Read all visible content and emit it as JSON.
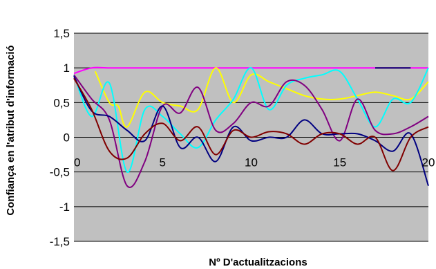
{
  "chart_data": {
    "type": "line",
    "title": "",
    "xlabel": "Nº D'actualitzacions",
    "ylabel": "Confiança en l'atribut d'informació",
    "xlim": [
      0,
      20
    ],
    "ylim": [
      -1.5,
      1.5
    ],
    "x_ticks": [
      0,
      5,
      10,
      15,
      20
    ],
    "x_tick_labels": [
      "0",
      "5",
      "10",
      "15",
      "20"
    ],
    "y_ticks": [
      1.5,
      1,
      0.5,
      0,
      -0.5,
      -1,
      -1.5
    ],
    "y_tick_labels": [
      "1,5",
      "1",
      "0,5",
      "0",
      "-0,5",
      "-1",
      "-1,5"
    ],
    "grid": true,
    "plot_background": "#c0c0c0",
    "legend": "none",
    "series": [
      {
        "color": "#ff00ff",
        "points": [
          [
            0,
            0.92
          ],
          [
            1,
            1
          ],
          [
            2,
            1
          ],
          [
            4,
            1
          ],
          [
            6,
            1
          ],
          [
            8,
            1
          ],
          [
            10,
            1
          ],
          [
            12,
            1
          ],
          [
            14,
            1
          ],
          [
            16,
            1
          ],
          [
            18,
            1
          ],
          [
            20,
            1
          ]
        ]
      },
      {
        "color": "#000066",
        "points": [
          [
            17,
            1
          ],
          [
            19,
            1
          ]
        ]
      },
      {
        "color": "#ffff00",
        "points": [
          [
            1.2,
            0.95
          ],
          [
            2,
            0.5
          ],
          [
            2.5,
            0.45
          ],
          [
            3,
            0.15
          ],
          [
            4,
            0.65
          ],
          [
            5,
            0.5
          ],
          [
            6,
            0.45
          ],
          [
            7,
            0.4
          ],
          [
            8,
            1.0
          ],
          [
            9,
            0.5
          ],
          [
            10,
            0.9
          ],
          [
            11,
            0.8
          ],
          [
            12,
            0.7
          ],
          [
            13,
            0.6
          ],
          [
            14,
            0.55
          ],
          [
            15,
            0.55
          ],
          [
            16,
            0.6
          ],
          [
            17,
            0.65
          ],
          [
            18,
            0.6
          ],
          [
            19,
            0.55
          ],
          [
            20,
            0.8
          ]
        ]
      },
      {
        "color": "#00ffff",
        "points": [
          [
            0,
            0.9
          ],
          [
            1,
            0.3
          ],
          [
            2,
            0.78
          ],
          [
            3,
            -0.5
          ],
          [
            4,
            0.4
          ],
          [
            5,
            0.3
          ],
          [
            6,
            0.05
          ],
          [
            7,
            -0.15
          ],
          [
            8,
            0.25
          ],
          [
            9,
            0.55
          ],
          [
            10,
            1.0
          ],
          [
            11,
            0.4
          ],
          [
            12,
            0.75
          ],
          [
            13,
            0.85
          ],
          [
            14,
            0.9
          ],
          [
            15,
            0.95
          ],
          [
            16,
            0.55
          ],
          [
            17,
            0.15
          ],
          [
            18,
            0.55
          ],
          [
            19,
            0.5
          ],
          [
            20,
            1.0
          ]
        ]
      },
      {
        "color": "#800080",
        "points": [
          [
            0,
            0.9
          ],
          [
            1,
            0.55
          ],
          [
            2,
            0.25
          ],
          [
            3,
            -0.7
          ],
          [
            4,
            -0.35
          ],
          [
            5,
            0.45
          ],
          [
            6,
            0.35
          ],
          [
            7,
            0.72
          ],
          [
            8,
            0.1
          ],
          [
            9,
            0.2
          ],
          [
            10,
            0.5
          ],
          [
            11,
            0.45
          ],
          [
            12,
            0.8
          ],
          [
            13,
            0.75
          ],
          [
            14,
            0.4
          ],
          [
            15,
            -0.05
          ],
          [
            16,
            0.55
          ],
          [
            17,
            0.1
          ],
          [
            18,
            0.05
          ],
          [
            19,
            0.15
          ],
          [
            20,
            0.3
          ]
        ]
      },
      {
        "color": "#000080",
        "points": [
          [
            0,
            0.88
          ],
          [
            1,
            0.38
          ],
          [
            2,
            0.3
          ],
          [
            3,
            0.1
          ],
          [
            4,
            -0.05
          ],
          [
            5,
            0.45
          ],
          [
            6,
            -0.15
          ],
          [
            7,
            0.0
          ],
          [
            8,
            -0.35
          ],
          [
            9,
            0.15
          ],
          [
            10,
            -0.05
          ],
          [
            11,
            0.0
          ],
          [
            12,
            0.0
          ],
          [
            13,
            0.25
          ],
          [
            14,
            0.05
          ],
          [
            15,
            0.05
          ],
          [
            16,
            0.05
          ],
          [
            17,
            -0.05
          ],
          [
            18,
            -0.2
          ],
          [
            19,
            0.05
          ],
          [
            20,
            -0.7
          ]
        ]
      },
      {
        "color": "#800000",
        "points": [
          [
            0,
            0.85
          ],
          [
            1,
            0.4
          ],
          [
            2,
            -0.2
          ],
          [
            3,
            -0.3
          ],
          [
            4,
            0.05
          ],
          [
            5,
            0.2
          ],
          [
            6,
            -0.05
          ],
          [
            7,
            0.15
          ],
          [
            8,
            -0.25
          ],
          [
            9,
            0.1
          ],
          [
            10,
            0.0
          ],
          [
            11,
            0.08
          ],
          [
            12,
            0.05
          ],
          [
            13,
            -0.1
          ],
          [
            14,
            0.05
          ],
          [
            15,
            0.05
          ],
          [
            16,
            -0.1
          ],
          [
            17,
            0.0
          ],
          [
            18,
            -0.48
          ],
          [
            19,
            0.0
          ],
          [
            20,
            0.15
          ]
        ]
      }
    ]
  }
}
